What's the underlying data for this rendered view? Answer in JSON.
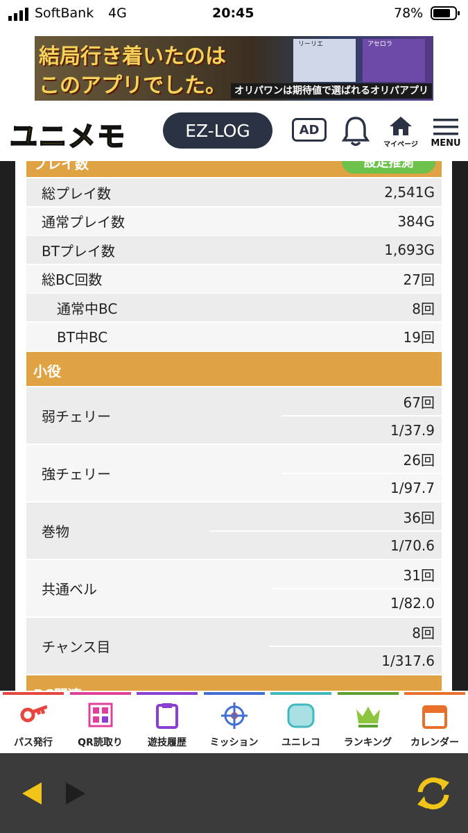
{
  "status": {
    "carrier": "SoftBank",
    "network": "4G",
    "time": "20:45",
    "battery": "78%"
  },
  "banner": {
    "headline1": "結局行き着いたのは",
    "headline2": "このアプリでした。",
    "tagline": "オリパワンは期待値で選ばれるオリパアプリ",
    "card1": "リーリエ",
    "card2": "アセロラ"
  },
  "header": {
    "logo": "ユニメモ",
    "ezlog": "EZ-LOG",
    "ad": "AD",
    "mypage": "マイページ",
    "menu": "MENU"
  },
  "play_section": {
    "title": "プレイ数",
    "button": "設定推測",
    "rows": [
      {
        "label": "総プレイ数",
        "value": "2,541G"
      },
      {
        "label": "通常プレイ数",
        "value": "384G"
      },
      {
        "label": "BTプレイ数",
        "value": "1,693G"
      },
      {
        "label": "総BC回数",
        "value": "27回"
      },
      {
        "label": "通常中BC",
        "value": "8回"
      },
      {
        "label": "BT中BC",
        "value": "19回"
      }
    ]
  },
  "koyaku_section": {
    "title": "小役",
    "rows": [
      {
        "label": "弱チェリー",
        "count": "67回",
        "probability": "1/37.9"
      },
      {
        "label": "強チェリー",
        "count": "26回",
        "probability": "1/97.7"
      },
      {
        "label": "巻物",
        "count": "36回",
        "probability": "1/70.6"
      },
      {
        "label": "共通ベル",
        "count": "31回",
        "probability": "1/82.0"
      },
      {
        "label": "チャンス目",
        "count": "8回",
        "probability": "1/317.6"
      }
    ]
  },
  "bc_section": {
    "title": "BC関連"
  },
  "nav": [
    {
      "label": "パス発行",
      "color": "#e8453c"
    },
    {
      "label": "QR読取り",
      "color": "#e0409a"
    },
    {
      "label": "遊技履歴",
      "color": "#8a3fd1"
    },
    {
      "label": "ミッション",
      "color": "#3f6fd1"
    },
    {
      "label": "ユニレコ",
      "color": "#3fb8c0"
    },
    {
      "label": "ランキング",
      "color": "#5aa02c"
    },
    {
      "label": "カレンダー",
      "color": "#e8702a"
    }
  ]
}
